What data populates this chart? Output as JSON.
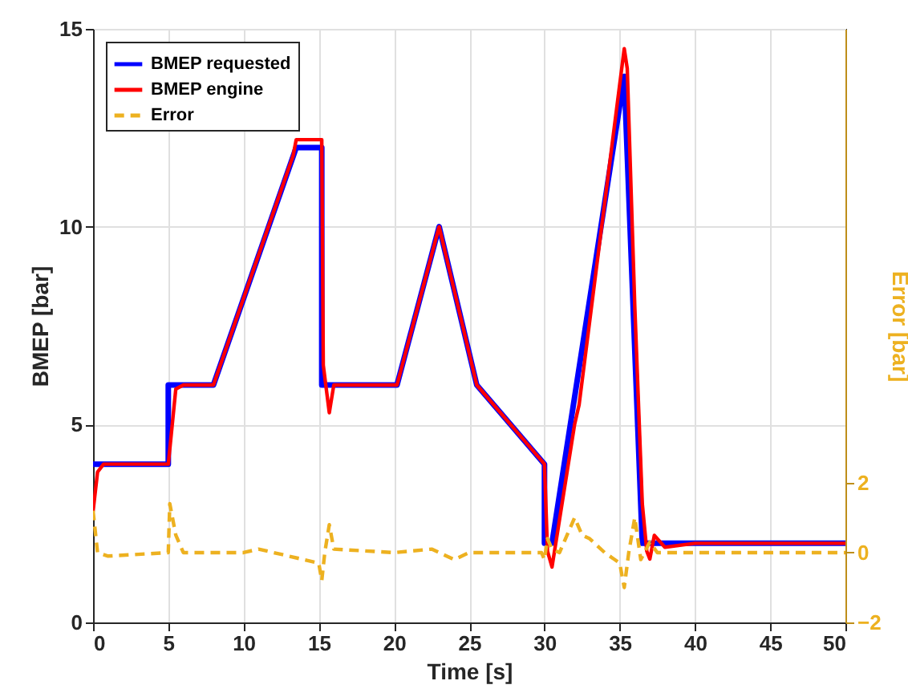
{
  "chart_data": {
    "type": "line",
    "xlabel": "Time [s]",
    "ylabel": "BMEP [bar]",
    "y2label": "Error [bar]",
    "xlim": [
      0,
      50
    ],
    "xticks": [
      0,
      5,
      10,
      15,
      20,
      25,
      30,
      35,
      40,
      45,
      50
    ],
    "ylim": [
      0,
      15
    ],
    "yticks": [
      0,
      5,
      10,
      15
    ],
    "y2lim": [
      -2,
      15
    ],
    "y2ticks": [
      -2,
      0,
      2
    ],
    "grid": true,
    "legend": "top left",
    "series": [
      {
        "name": "BMEP requested",
        "color": "#0000ff",
        "line_style": "solid",
        "x": [
          0,
          5,
          5,
          8,
          13.5,
          15.2,
          15.2,
          20.2,
          23,
          25.5,
          30,
          30,
          30.5,
          35.3,
          36.5,
          50
        ],
        "values": [
          4,
          4,
          6,
          6,
          12,
          12,
          6,
          6,
          10,
          6,
          4,
          2,
          2,
          13.8,
          2,
          2
        ]
      },
      {
        "name": "BMEP engine",
        "color": "#ff0000",
        "line_style": "solid",
        "x": [
          0,
          0.3,
          0.7,
          5,
          5.5,
          6,
          8,
          13.3,
          13.5,
          15.2,
          15.3,
          15.7,
          16,
          20.2,
          23,
          25.5,
          30,
          30.2,
          30.5,
          32,
          32.3,
          35.3,
          35.5,
          36,
          36.5,
          36.8,
          37,
          37.3,
          38,
          40,
          50
        ],
        "values": [
          2.8,
          3.8,
          4,
          4,
          5.9,
          6,
          6,
          11.8,
          12.2,
          12.2,
          6.5,
          5.3,
          6,
          6,
          10,
          6,
          4,
          1.8,
          1.4,
          5,
          5.5,
          14.5,
          14,
          8,
          3,
          1.8,
          1.6,
          2.2,
          1.9,
          2,
          2
        ]
      },
      {
        "name": "Error",
        "color": "#edb120",
        "line_style": "dashed",
        "axis": "y2",
        "x": [
          0,
          0.3,
          1,
          5,
          5.1,
          5.5,
          6,
          10,
          11,
          14,
          15,
          15.2,
          15.4,
          15.7,
          16,
          20,
          22.5,
          24,
          25,
          29.8,
          30,
          30.2,
          30.5,
          31,
          32,
          32.5,
          33,
          34,
          35,
          35.3,
          35.6,
          36,
          36.4,
          37,
          37.5,
          50
        ],
        "values": [
          1.2,
          0,
          -0.1,
          0,
          1.4,
          0.5,
          0,
          0,
          0.1,
          -0.2,
          -0.3,
          -0.8,
          0,
          0.8,
          0.1,
          0,
          0.1,
          -0.2,
          0,
          0,
          -0.2,
          0.4,
          0.1,
          0,
          1,
          0.5,
          0.4,
          0,
          -0.3,
          -1,
          0,
          1,
          -0.2,
          0.3,
          0,
          0
        ]
      }
    ]
  }
}
